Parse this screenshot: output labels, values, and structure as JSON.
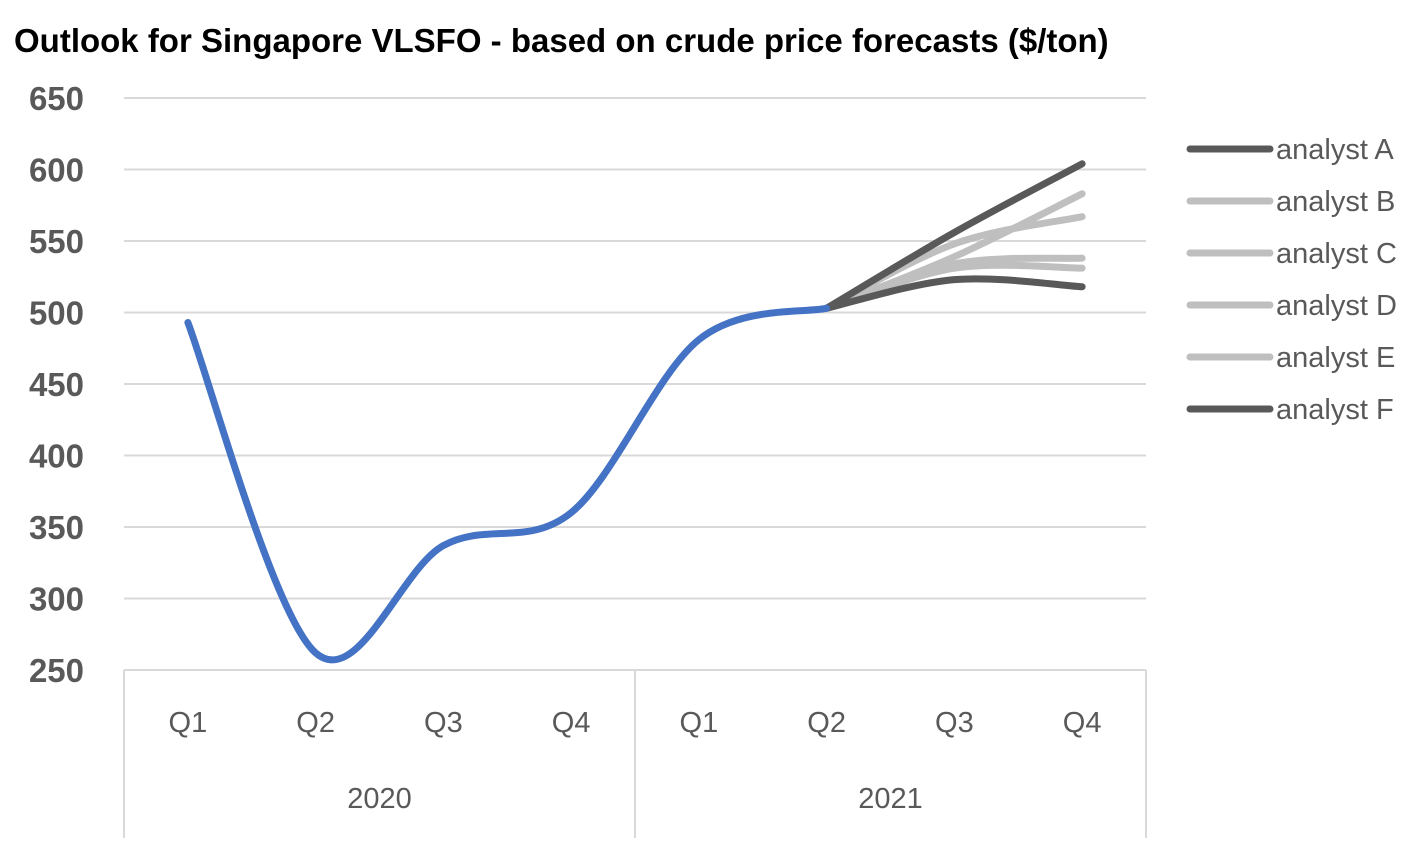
{
  "chart_data": {
    "type": "line",
    "title": "Outlook for Singapore VLSFO - based on crude price forecasts ($/ton)",
    "categories": [
      "Q1",
      "Q2",
      "Q3",
      "Q4",
      "Q1",
      "Q2",
      "Q3",
      "Q4"
    ],
    "groups": [
      {
        "label": "2020",
        "span": 4
      },
      {
        "label": "2021",
        "span": 4
      }
    ],
    "ylim": [
      250,
      650
    ],
    "yticks": [
      250,
      300,
      350,
      400,
      450,
      500,
      550,
      600,
      650
    ],
    "grid": true,
    "smooth": true,
    "legend_position": "right",
    "series": [
      {
        "values": [
          493,
          262,
          337,
          360,
          481,
          503,
          null,
          null
        ],
        "color": "#4472c4"
      },
      {
        "name": "analyst A",
        "values": [
          null,
          null,
          null,
          null,
          null,
          503,
          556,
          604
        ],
        "color": "#595959"
      },
      {
        "name": "analyst B",
        "values": [
          null,
          null,
          null,
          null,
          null,
          503,
          539,
          583
        ],
        "color": "#bfbfbf"
      },
      {
        "name": "analyst C",
        "values": [
          null,
          null,
          null,
          null,
          null,
          503,
          548,
          567
        ],
        "color": "#bfbfbf"
      },
      {
        "name": "analyst D",
        "values": [
          null,
          null,
          null,
          null,
          null,
          503,
          534,
          538
        ],
        "color": "#bfbfbf"
      },
      {
        "name": "analyst E",
        "values": [
          null,
          null,
          null,
          null,
          null,
          503,
          531,
          531
        ],
        "color": "#bfbfbf"
      },
      {
        "name": "analyst F",
        "values": [
          null,
          null,
          null,
          null,
          null,
          503,
          523,
          518
        ],
        "color": "#595959"
      }
    ]
  }
}
